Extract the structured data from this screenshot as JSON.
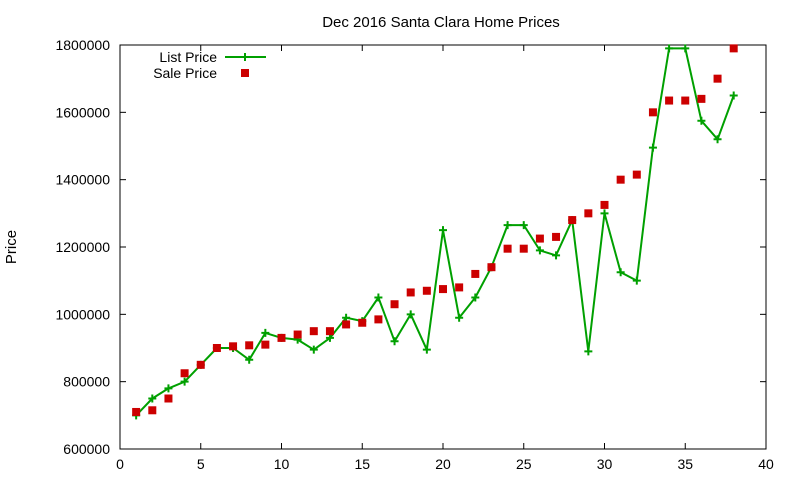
{
  "chart_data": {
    "type": "line",
    "title": "Dec 2016 Santa Clara Home Prices",
    "xlabel": "",
    "ylabel": "Price",
    "xlim": [
      0,
      40
    ],
    "ylim": [
      600000,
      1800000
    ],
    "x_ticks": [
      "0",
      "5",
      "10",
      "15",
      "20",
      "25",
      "30",
      "35",
      "40"
    ],
    "y_ticks": [
      "600000",
      "800000",
      "1000000",
      "1200000",
      "1400000",
      "1600000",
      "1800000"
    ],
    "grid": false,
    "legend_position": "top-left",
    "series": [
      {
        "name": "List Price",
        "style": "line-plus",
        "color": "#00a000",
        "x": [
          1,
          2,
          3,
          4,
          5,
          6,
          7,
          8,
          9,
          10,
          11,
          12,
          13,
          14,
          15,
          16,
          17,
          18,
          19,
          20,
          21,
          22,
          23,
          24,
          25,
          26,
          27,
          28,
          29,
          30,
          31,
          32,
          33,
          34,
          35,
          36,
          37,
          38
        ],
        "values": [
          700000,
          750000,
          780000,
          800000,
          850000,
          900000,
          900000,
          865000,
          945000,
          930000,
          925000,
          895000,
          930000,
          990000,
          980000,
          1050000,
          920000,
          1000000,
          895000,
          1250000,
          990000,
          1050000,
          1140000,
          1265000,
          1265000,
          1190000,
          1175000,
          1280000,
          890000,
          1300000,
          1125000,
          1100000,
          1495000,
          1790000,
          1790000,
          1575000,
          1520000,
          1650000
        ]
      },
      {
        "name": "Sale Price",
        "style": "square",
        "color": "#cc0000",
        "x": [
          1,
          2,
          3,
          4,
          5,
          6,
          7,
          8,
          9,
          10,
          11,
          12,
          13,
          14,
          15,
          16,
          17,
          18,
          19,
          20,
          21,
          22,
          23,
          24,
          25,
          26,
          27,
          28,
          29,
          30,
          31,
          32,
          33,
          34,
          35,
          36,
          37,
          38
        ],
        "values": [
          710000,
          715000,
          750000,
          825000,
          850000,
          900000,
          905000,
          908000,
          910000,
          930000,
          940000,
          950000,
          950000,
          970000,
          975000,
          985000,
          1030000,
          1065000,
          1070000,
          1075000,
          1080000,
          1120000,
          1140000,
          1195000,
          1195000,
          1225000,
          1230000,
          1280000,
          1300000,
          1325000,
          1400000,
          1415000,
          1600000,
          1635000,
          1635000,
          1640000,
          1700000,
          1790000
        ]
      }
    ]
  }
}
